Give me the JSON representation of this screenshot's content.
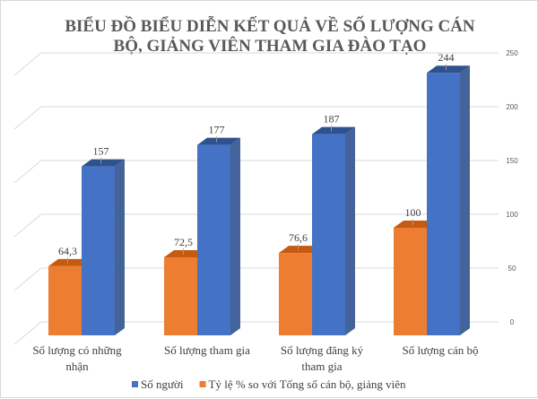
{
  "chart_data": {
    "type": "bar",
    "title": "BIỂU ĐỒ BIỂU DIỄN KẾT QUẢ VỀ SỐ LƯỢNG CÁN BỘ, GIẢNG VIÊN THAM GIA ĐÀO TẠO",
    "title_lines": [
      "BIỂU ĐỒ BIỂU DIỄN KẾT QUẢ VỀ SỐ LƯỢNG CÁN",
      "BỘ, GIẢNG VIÊN THAM GIA ĐÀO TẠO"
    ],
    "categories": [
      [
        "Số lượng có những",
        "nhận"
      ],
      [
        "Số lượng tham gia"
      ],
      [
        "Số lượng đăng ký",
        "tham gia"
      ],
      [
        "Số lượng cán bộ"
      ]
    ],
    "series": [
      {
        "name": "Tỷ lệ % so với Tổng số cán bộ, giảng viên",
        "values": [
          64.3,
          72.5,
          76.6,
          100
        ],
        "labels": [
          "64,3",
          "72,5",
          "76,6",
          "100"
        ],
        "color": "#ED7D31",
        "side_color": "#C55A11"
      },
      {
        "name": "Số người",
        "values": [
          157,
          177,
          187,
          244
        ],
        "labels": [
          "157",
          "177",
          "187",
          "244"
        ],
        "color": "#4472C4",
        "side_color": "#2F528F"
      }
    ],
    "legend_order": [
      1,
      0
    ],
    "yticks": [
      0,
      50,
      100,
      150,
      200,
      250
    ],
    "ylim": [
      0,
      250
    ],
    "yaxis_position": "right",
    "grid": true,
    "legend": "bottom",
    "style": "3d-clustered-column"
  }
}
